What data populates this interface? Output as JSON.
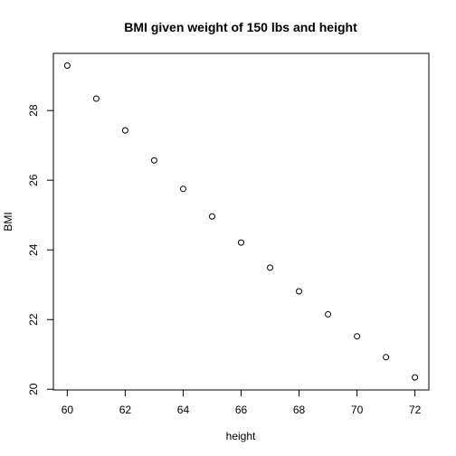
{
  "chart_data": {
    "type": "scatter",
    "title": "BMI given weight of 150 lbs and height",
    "xlabel": "height",
    "ylabel": "BMI",
    "xlim": [
      59.52,
      72.48
    ],
    "ylim": [
      19.98,
      29.64
    ],
    "xticks": [
      60,
      62,
      64,
      66,
      68,
      70,
      72
    ],
    "yticks": [
      20,
      22,
      24,
      26,
      28
    ],
    "x": [
      60,
      61,
      62,
      63,
      64,
      65,
      66,
      67,
      68,
      69,
      70,
      71,
      72
    ],
    "y": [
      29.29,
      28.34,
      27.43,
      26.57,
      25.75,
      24.96,
      24.21,
      23.49,
      22.81,
      22.15,
      21.52,
      20.92,
      20.34
    ],
    "marker": "open-circle",
    "grid": false,
    "legend": false,
    "colors": {
      "points": "#000000",
      "background": "#ffffff"
    }
  }
}
